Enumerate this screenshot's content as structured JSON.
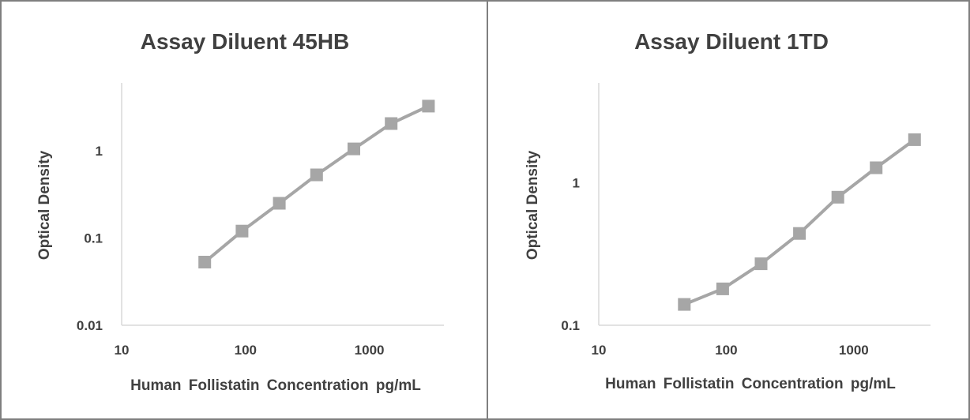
{
  "chart_data": [
    {
      "type": "line",
      "title": "Assay Diluent 45HB",
      "xlabel": "Human Follistatin Concentration pg/mL",
      "ylabel": "Optical Density",
      "x_scale": "log",
      "y_scale": "log",
      "xlim": [
        10,
        4000
      ],
      "ylim": [
        0.01,
        6
      ],
      "x_ticks": [
        "10",
        "100",
        "1000"
      ],
      "y_ticks": [
        "0.01",
        "0.1",
        "1"
      ],
      "grid": false,
      "legend": "none",
      "series_color": "#a6a6a6",
      "series": [
        {
          "x": [
            46.875,
            93.75,
            187.5,
            375,
            750,
            1500,
            3000
          ],
          "values": [
            0.053,
            0.12,
            0.25,
            0.53,
            1.05,
            2.05,
            3.25
          ]
        }
      ]
    },
    {
      "type": "line",
      "title": "Assay Diluent 1TD",
      "xlabel": "Human Follistatin Concentration pg/mL",
      "ylabel": "Optical Density",
      "x_scale": "log",
      "y_scale": "log",
      "xlim": [
        10,
        4000
      ],
      "ylim": [
        0.1,
        5
      ],
      "x_ticks": [
        "10",
        "100",
        "1000"
      ],
      "y_ticks": [
        "0.1",
        "1"
      ],
      "grid": false,
      "legend": "none",
      "series_color": "#a6a6a6",
      "series": [
        {
          "x": [
            46.875,
            93.75,
            187.5,
            375,
            750,
            1500,
            3000
          ],
          "values": [
            0.14,
            0.18,
            0.27,
            0.44,
            0.79,
            1.27,
            2.0
          ]
        }
      ]
    }
  ]
}
